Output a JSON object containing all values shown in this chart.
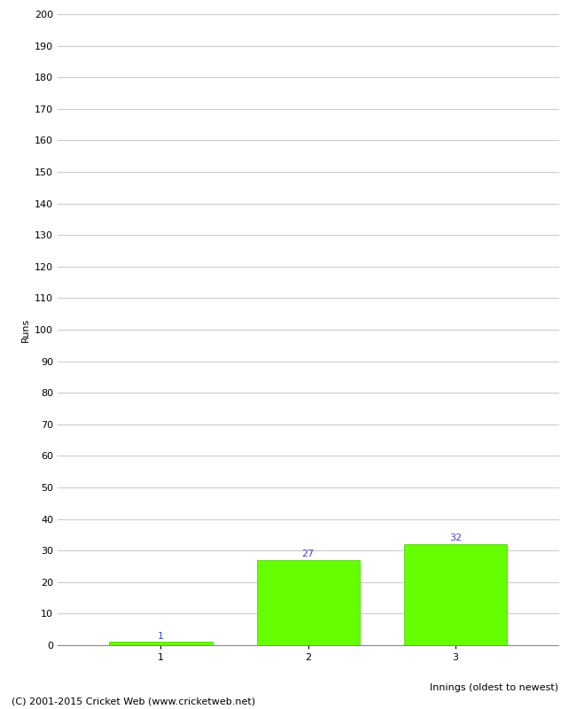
{
  "categories": [
    "1",
    "2",
    "3"
  ],
  "values": [
    1,
    27,
    32
  ],
  "bar_color": "#66ff00",
  "bar_edge_color": "#44cc00",
  "label_color": "#4444cc",
  "xlabel": "Innings (oldest to newest)",
  "ylabel": "Runs",
  "ylim": [
    0,
    200
  ],
  "yticks": [
    0,
    10,
    20,
    30,
    40,
    50,
    60,
    70,
    80,
    90,
    100,
    110,
    120,
    130,
    140,
    150,
    160,
    170,
    180,
    190,
    200
  ],
  "footer": "(C) 2001-2015 Cricket Web (www.cricketweb.net)",
  "background_color": "#ffffff",
  "grid_color": "#cccccc",
  "label_fontsize": 8,
  "tick_fontsize": 8,
  "ylabel_fontsize": 8,
  "xlabel_fontsize": 8,
  "footer_fontsize": 8
}
